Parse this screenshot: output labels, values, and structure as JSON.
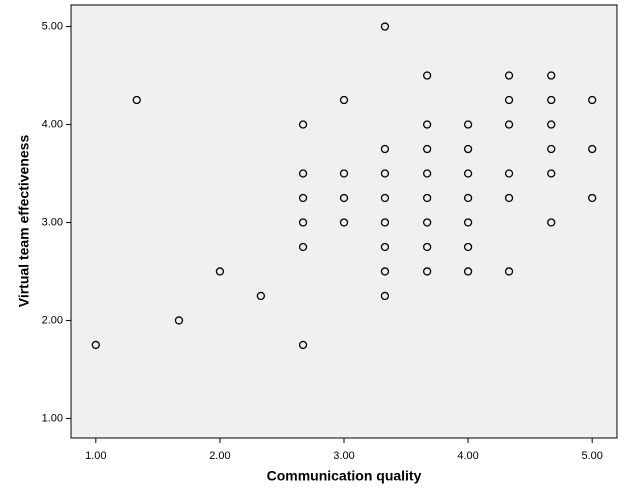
{
  "chart_data": {
    "type": "scatter",
    "x_label": "Communication quality",
    "y_label": "Virtual team effectiveness",
    "x": [
      1,
      1.33,
      1.67,
      2,
      2.33,
      2.67,
      2.67,
      2.67,
      2.67,
      2.67,
      2.67,
      3,
      3,
      3,
      3,
      3.33,
      3.33,
      3.33,
      3.33,
      3.33,
      3.33,
      3.33,
      3.33,
      3.67,
      3.67,
      3.67,
      3.67,
      3.67,
      3.67,
      3.67,
      3.67,
      4,
      4,
      4,
      4,
      4,
      4,
      4,
      4.33,
      4.33,
      4.33,
      4.33,
      4.33,
      4.33,
      4.67,
      4.67,
      4.67,
      4.67,
      4.67,
      4.67,
      5,
      5,
      5
    ],
    "values": [
      1.75,
      4.25,
      2,
      2.5,
      2.25,
      4,
      3.5,
      3.25,
      3,
      2.75,
      1.75,
      4.25,
      3.5,
      3.25,
      3,
      5,
      3.75,
      3.5,
      3.25,
      3,
      2.75,
      2.5,
      2.25,
      4.5,
      4,
      3.75,
      3.5,
      3.25,
      3,
      2.75,
      2.5,
      4,
      3.75,
      3.5,
      3.25,
      3,
      2.75,
      2.5,
      4.5,
      4.25,
      4,
      3.5,
      3.25,
      2.5,
      4.5,
      4.25,
      4,
      3.75,
      3.5,
      3,
      4.25,
      3.75,
      3.25
    ],
    "color": "#000000",
    "xlim": [
      0.8,
      5.2
    ],
    "ylim": [
      0.8,
      5.22
    ],
    "xticks": [
      {
        "value": 1,
        "label": "1.00"
      },
      {
        "value": 2,
        "label": "2.00"
      },
      {
        "value": 3,
        "label": "3.00"
      },
      {
        "value": 4,
        "label": "4.00"
      },
      {
        "value": 5,
        "label": "5.00"
      }
    ],
    "yticks": [
      {
        "value": 1,
        "label": "1.00"
      },
      {
        "value": 2,
        "label": "2.00"
      },
      {
        "value": 3,
        "label": "3.00"
      },
      {
        "value": 4,
        "label": "4.00"
      },
      {
        "value": 5,
        "label": "5.00"
      }
    ]
  }
}
